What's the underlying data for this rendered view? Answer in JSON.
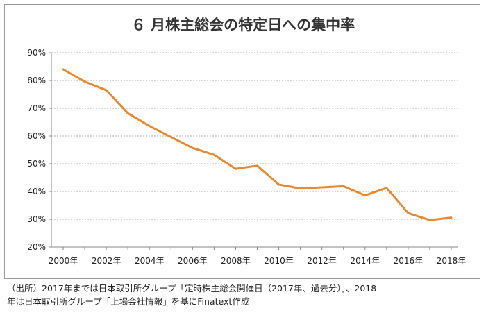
{
  "chart_data": {
    "type": "line",
    "title": "６ 月株主総会の特定日への集中率",
    "xlabel": "",
    "ylabel": "",
    "x": [
      2000,
      2001,
      2002,
      2003,
      2004,
      2005,
      2006,
      2007,
      2008,
      2009,
      2010,
      2011,
      2012,
      2013,
      2014,
      2015,
      2016,
      2017,
      2018
    ],
    "x_tick_labels": [
      "2000年",
      "2002年",
      "2004年",
      "2006年",
      "2008年",
      "2010年",
      "2012年",
      "2014年",
      "2016年",
      "2018年"
    ],
    "y_tick_labels": [
      "20%",
      "30%",
      "40%",
      "50%",
      "60%",
      "70%",
      "80%",
      "90%"
    ],
    "ylim": [
      20,
      90
    ],
    "y_unit": "%",
    "grid": "horizontal-dotted",
    "series": [
      {
        "values": [
          84.0,
          79.6,
          76.5,
          68.2,
          63.6,
          59.6,
          55.7,
          53.2,
          48.2,
          49.3,
          42.5,
          41.1,
          41.5,
          41.9,
          38.6,
          41.3,
          32.2,
          29.7,
          30.6
        ]
      }
    ],
    "colors": {
      "line": "#e8892f",
      "grid": "#b0b0b0",
      "axis": "#888888"
    }
  },
  "caption": {
    "line1": "（出所）2017年までは日本取引所グループ「定時株主総会開催日（2017年、過去分）」、2018",
    "line2": "年は日本取引所グループ「上場会社情報」を基にFinatext作成"
  }
}
